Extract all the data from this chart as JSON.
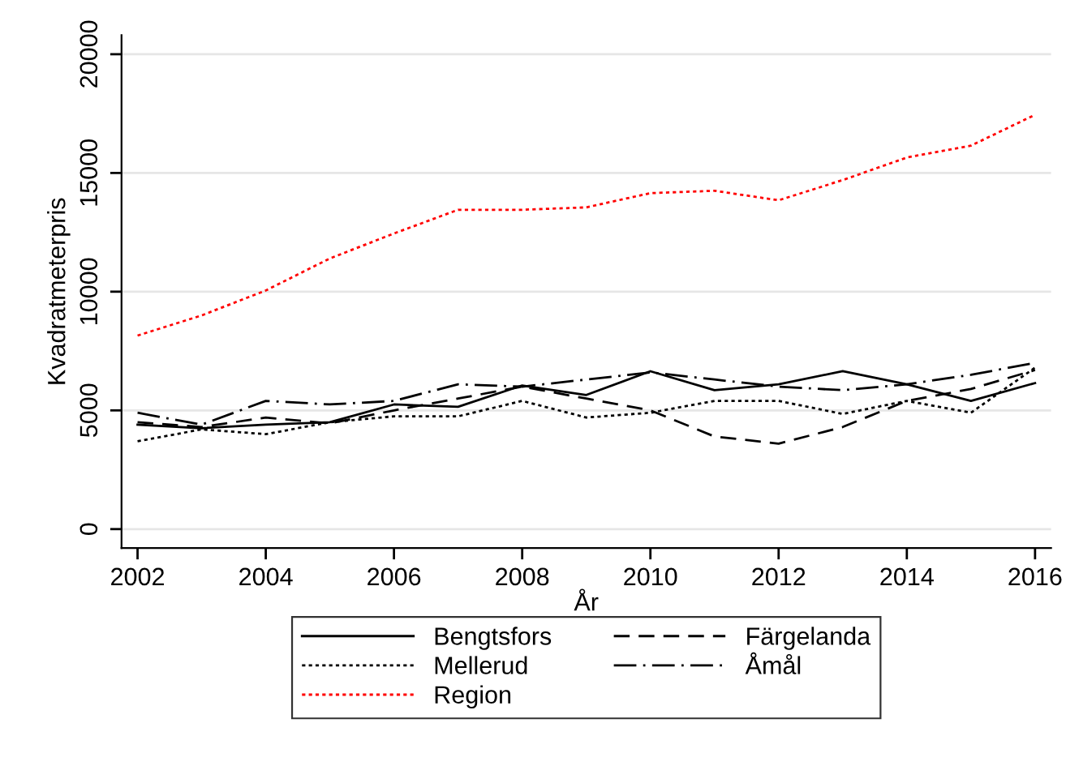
{
  "chart_data": {
    "type": "line",
    "xlabel": "År",
    "ylabel": "Kvadratmeterpris",
    "x": [
      2002,
      2003,
      2004,
      2005,
      2006,
      2007,
      2008,
      2009,
      2010,
      2011,
      2012,
      2013,
      2014,
      2015,
      2016
    ],
    "series": [
      {
        "name": "Bengtsfors",
        "color": "#000000",
        "line_style": "solid",
        "values": [
          4400,
          4250,
          4400,
          4500,
          5250,
          5150,
          6050,
          5650,
          6650,
          5850,
          6100,
          6650,
          6100,
          5400,
          6150
        ]
      },
      {
        "name": "Färgelanda",
        "color": "#000000",
        "line_style": "dashed",
        "values": [
          4500,
          4300,
          4700,
          4450,
          5000,
          5500,
          6000,
          5500,
          5000,
          3900,
          3600,
          4300,
          5400,
          5900,
          6700
        ]
      },
      {
        "name": "Mellerud",
        "color": "#000000",
        "line_style": "dotted",
        "values": [
          3700,
          4200,
          4000,
          4500,
          4750,
          4750,
          5400,
          4700,
          4900,
          5400,
          5400,
          4850,
          5400,
          4900,
          6800
        ]
      },
      {
        "name": "Åmål",
        "color": "#000000",
        "line_style": "dashdot",
        "values": [
          4900,
          4400,
          5400,
          5250,
          5400,
          6100,
          6000,
          6300,
          6600,
          6300,
          6000,
          5850,
          6100,
          6500,
          7000
        ]
      },
      {
        "name": "Region",
        "color": "#ff0000",
        "line_style": "dotted",
        "values": [
          8150,
          9000,
          10050,
          11400,
          12450,
          13450,
          13450,
          13550,
          14150,
          14250,
          13850,
          14700,
          15650,
          16150,
          17450
        ]
      }
    ],
    "xlim": [
      2001.75,
      2016.25
    ],
    "ylim": [
      -800,
      20800
    ],
    "xticks": [
      2002,
      2004,
      2006,
      2008,
      2010,
      2012,
      2014,
      2016
    ],
    "yticks": [
      0,
      5000,
      10000,
      15000,
      20000
    ],
    "grid": "y",
    "legend": "bottom",
    "marker": "none"
  }
}
